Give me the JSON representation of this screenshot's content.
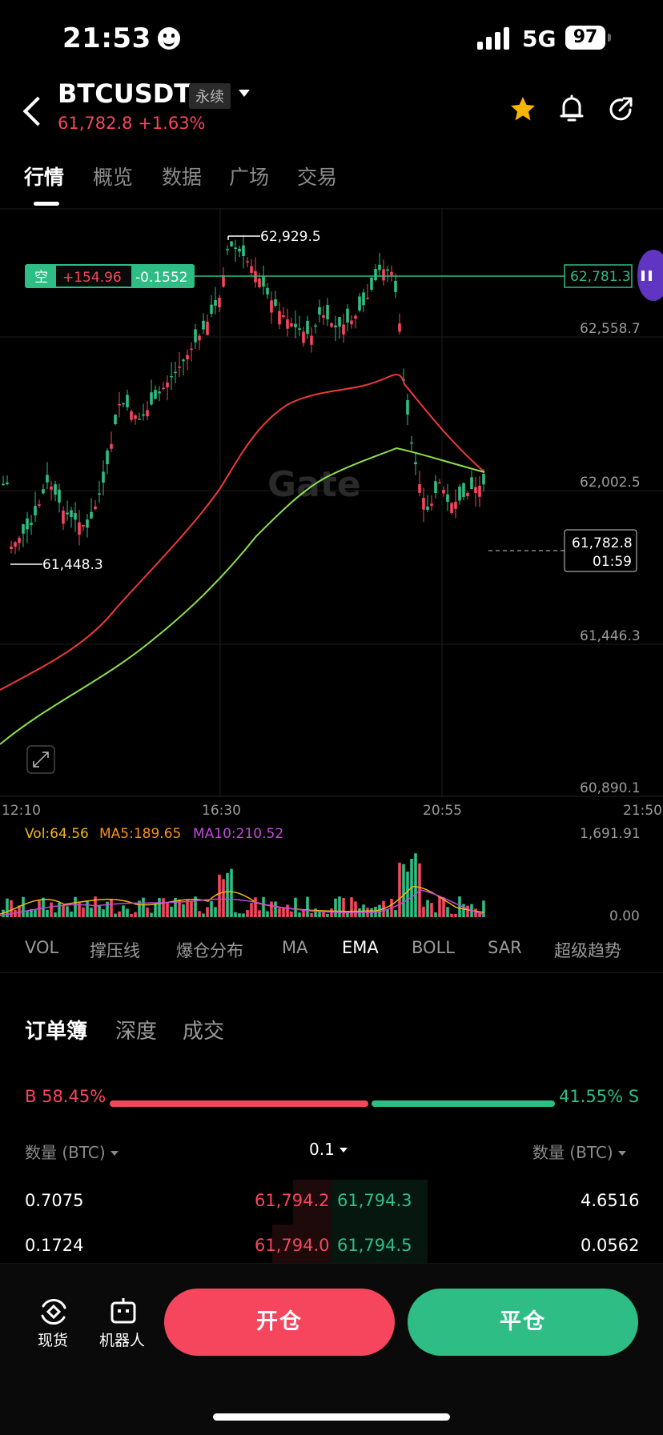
{
  "status": {
    "time": "21:53",
    "network": "5G",
    "battery": "97"
  },
  "header": {
    "symbol": "BTCUSDT",
    "contract_tag": "永续",
    "last_price": "61,782.8",
    "change": "+1.63%"
  },
  "tabs": [
    {
      "label": "行情",
      "active": true
    },
    {
      "label": "概览",
      "active": false
    },
    {
      "label": "数据",
      "active": false
    },
    {
      "label": "广场",
      "active": false
    },
    {
      "label": "交易",
      "active": false
    }
  ],
  "chart": {
    "watermark": "Gate",
    "price_axis": [
      "62,781.3",
      "62,558.7",
      "62,002.5",
      "61,446.3",
      "60,890.1"
    ],
    "time_axis": [
      "12:10",
      "16:30",
      "20:55",
      "21:50"
    ],
    "high_label": "62,929.5",
    "low_label": "61,448.3",
    "position": {
      "side": "空",
      "pnl": "+154.96",
      "pnl_pct": "-0.1552",
      "entry_price": "62,781.3"
    },
    "current_price": "61,782.8",
    "countdown": "01:59",
    "colors": {
      "up": "#f6465d",
      "down": "#2ebd85",
      "ema_fast": "#f03a3a",
      "ema_slow": "#8ee04a"
    }
  },
  "volume": {
    "vol_label": "Vol:64.56",
    "ma5_label": "MA5:189.65",
    "ma10_label": "MA10:210.52",
    "max": "1,691.91",
    "min": "0.00"
  },
  "indicators": [
    {
      "label": "VOL",
      "active": false
    },
    {
      "label": "撑压线",
      "active": false
    },
    {
      "label": "爆仓分布",
      "active": false
    },
    {
      "label": "MA",
      "active": false
    },
    {
      "label": "EMA",
      "active": true
    },
    {
      "label": "BOLL",
      "active": false
    },
    {
      "label": "SAR",
      "active": false
    },
    {
      "label": "超级趋势",
      "active": false
    }
  ],
  "orderbook": {
    "tabs": [
      "订单簿",
      "深度",
      "成交"
    ],
    "buy_ratio": "B 58.45%",
    "sell_ratio": "41.55% S",
    "buy_fraction": 0.5845,
    "col_left": "数量 (BTC)",
    "col_mid": "0.1",
    "col_right": "数量 (BTC)",
    "rows": [
      {
        "bid_qty": "0.7075",
        "bid_price": "61,794.2",
        "ask_price": "61,794.3",
        "ask_qty": "4.6516"
      },
      {
        "bid_qty": "0.1724",
        "bid_price": "61,794.0",
        "ask_price": "61,794.5",
        "ask_qty": "0.0562"
      }
    ]
  },
  "bottom": {
    "spot_label": "现货",
    "bot_label": "机器人",
    "open_label": "开仓",
    "close_label": "平仓"
  }
}
